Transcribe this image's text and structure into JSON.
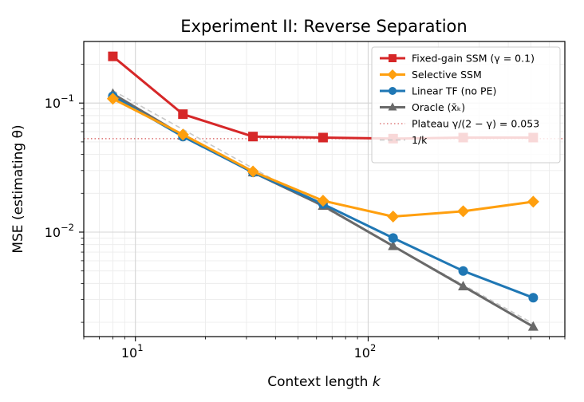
{
  "chart_data": {
    "type": "line",
    "title": "Experiment II: Reverse Separation",
    "xlabel": "Context length k",
    "ylabel": "MSE (estimating θ)",
    "xscale": "log",
    "yscale": "log",
    "xlim": [
      6,
      700
    ],
    "ylim": [
      0.00155,
      0.3
    ],
    "grid": true,
    "legend_position": "top-right",
    "x_tick_labels": [
      {
        "value": 10,
        "base": "10",
        "exp": "1"
      },
      {
        "value": 100,
        "base": "10",
        "exp": "2"
      }
    ],
    "y_tick_labels": [
      {
        "value": 0.01,
        "base": "10",
        "exp": "−2"
      },
      {
        "value": 0.1,
        "base": "10",
        "exp": "−1"
      }
    ],
    "x": [
      8,
      16,
      32,
      64,
      128,
      256,
      512
    ],
    "series": [
      {
        "name": "Fixed-gain SSM (γ = 0.1)",
        "color": "#d62728",
        "marker": "square",
        "values": [
          0.23,
          0.082,
          0.055,
          0.054,
          0.053,
          0.054,
          0.054
        ]
      },
      {
        "name": "Selective SSM",
        "color": "#ff9f0e",
        "marker": "diamond",
        "values": [
          0.108,
          0.057,
          0.0295,
          0.0175,
          0.0132,
          0.0145,
          0.0172
        ]
      },
      {
        "name": "Linear TF (no PE)",
        "color": "#1f77b4",
        "marker": "circle",
        "values": [
          0.113,
          0.055,
          0.029,
          0.0165,
          0.009,
          0.005,
          0.0031
        ]
      },
      {
        "name": "Oracle (x̄ₖ)",
        "color": "#696969",
        "marker": "triangle",
        "values": [
          0.118,
          0.056,
          0.029,
          0.016,
          0.0078,
          0.0038,
          0.00185
        ]
      }
    ],
    "reference_lines": [
      {
        "name": "Plateau γ/(2 − γ) = 0.053",
        "type": "horizontal",
        "value": 0.053,
        "color": "#e08080",
        "style": "dotted"
      },
      {
        "name": "1/k",
        "type": "function",
        "coef": 1.0,
        "color": "#c8c8c8",
        "style": "dashed"
      }
    ]
  }
}
